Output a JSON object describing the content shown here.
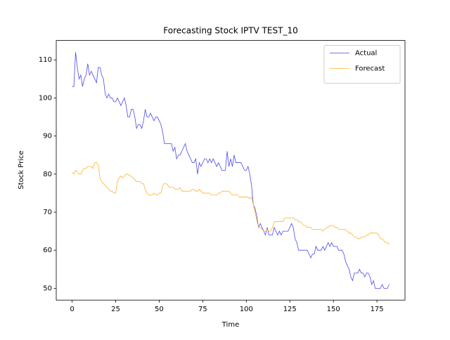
{
  "chart_data": {
    "type": "line",
    "title": "Forecasting Stock IPTV TEST_10",
    "xlabel": "Time",
    "ylabel": "Stock Price",
    "x": [
      0,
      1,
      2,
      3,
      4,
      5,
      6,
      7,
      8,
      9,
      10,
      11,
      12,
      13,
      14,
      15,
      16,
      17,
      18,
      19,
      20,
      21,
      22,
      23,
      24,
      25,
      26,
      27,
      28,
      29,
      30,
      31,
      32,
      33,
      34,
      35,
      36,
      37,
      38,
      39,
      40,
      41,
      42,
      43,
      44,
      45,
      46,
      47,
      48,
      49,
      50,
      51,
      52,
      53,
      54,
      55,
      56,
      57,
      58,
      59,
      60,
      61,
      62,
      63,
      64,
      65,
      66,
      67,
      68,
      69,
      70,
      71,
      72,
      73,
      74,
      75,
      76,
      77,
      78,
      79,
      80,
      81,
      82,
      83,
      84,
      85,
      86,
      87,
      88,
      89,
      90,
      91,
      92,
      93,
      94,
      95,
      96,
      97,
      98,
      99,
      100,
      101,
      102,
      103,
      104,
      105,
      106,
      107,
      108,
      109,
      110,
      111,
      112,
      113,
      114,
      115,
      116,
      117,
      118,
      119,
      120,
      121,
      122,
      123,
      124,
      125,
      126,
      127,
      128,
      129,
      130,
      131,
      132,
      133,
      134,
      135,
      136,
      137,
      138,
      139,
      140,
      141,
      142,
      143,
      144,
      145,
      146,
      147,
      148,
      149,
      150,
      151,
      152,
      153,
      154,
      155,
      156,
      157,
      158,
      159,
      160,
      161,
      162,
      163,
      164,
      165,
      166,
      167,
      168,
      169,
      170,
      171,
      172,
      173,
      174,
      175,
      176,
      177,
      178,
      179,
      180,
      181,
      182
    ],
    "series": [
      {
        "name": "Actual",
        "color": "#4a4aeb",
        "values": [
          103,
          103,
          112,
          108,
          105,
          106,
          103,
          105,
          106,
          109,
          106,
          107,
          106,
          105,
          104,
          108,
          108,
          106,
          105,
          101,
          100,
          101,
          100,
          100,
          99,
          99,
          100,
          99,
          98,
          99,
          100,
          98,
          95,
          95,
          97,
          97,
          95,
          92,
          93,
          93,
          92,
          94,
          97,
          95,
          95,
          96,
          95,
          94,
          95,
          95,
          94,
          93,
          91,
          88,
          88,
          88,
          88,
          88,
          86,
          87,
          84,
          85,
          85,
          86,
          87,
          88,
          86,
          85,
          84,
          83,
          83,
          84,
          80,
          83,
          82,
          83,
          84,
          84,
          83,
          84,
          83,
          84,
          83,
          82,
          83,
          82,
          81,
          81,
          81,
          86,
          82,
          84,
          82,
          85,
          83,
          83,
          83,
          83,
          82,
          81,
          81,
          82,
          80,
          77,
          72,
          71,
          69,
          66,
          67,
          66,
          65,
          64,
          66,
          64,
          64,
          64,
          66,
          65,
          64,
          65,
          64,
          65,
          65,
          65,
          65,
          66,
          67,
          66,
          63,
          62,
          60,
          60,
          60,
          60,
          60,
          60,
          59,
          58,
          59,
          59,
          61,
          60,
          60,
          60,
          61,
          60,
          61,
          62,
          61,
          62,
          61,
          61,
          61,
          60,
          60,
          60,
          59,
          57,
          56,
          55,
          53,
          52,
          54,
          54,
          54,
          55,
          54,
          54,
          53,
          54,
          54,
          53,
          51,
          52,
          50,
          50,
          50,
          50,
          51,
          50,
          50,
          50,
          51
        ]
      },
      {
        "name": "Forecast",
        "color": "#ffb32a",
        "values": [
          80.5,
          80,
          81,
          80.5,
          80,
          80,
          81,
          81.5,
          81.5,
          82,
          82,
          82,
          81.5,
          83,
          83,
          82.5,
          79,
          78,
          77.5,
          77,
          76.5,
          76,
          75.5,
          75.5,
          75,
          75,
          78,
          79,
          79.5,
          79,
          79.5,
          80,
          80,
          79.5,
          79.5,
          79,
          78.5,
          78,
          78,
          78,
          77.5,
          77.5,
          76,
          75,
          74.5,
          74.5,
          74.5,
          75,
          74.5,
          74.5,
          75,
          75,
          77,
          77.5,
          77.5,
          77,
          76.5,
          76.5,
          76.5,
          76,
          76,
          76,
          76.5,
          75.5,
          75.5,
          75.5,
          75.5,
          75.5,
          75.5,
          76,
          76,
          75.5,
          75.5,
          76,
          75.5,
          75,
          75,
          75,
          75,
          75,
          74.5,
          74.5,
          74.5,
          74.5,
          75,
          75,
          75.5,
          75.5,
          75.5,
          75.5,
          75.5,
          75,
          74.5,
          74.5,
          74.5,
          74.5,
          74,
          74,
          74,
          74,
          74,
          74,
          73.5,
          74,
          72,
          70,
          68,
          66,
          66,
          65.5,
          65,
          65,
          65.5,
          65,
          65,
          66,
          67.5,
          67.5,
          67.5,
          67.5,
          67.5,
          67.5,
          68.5,
          68.5,
          68.5,
          68.5,
          68.5,
          68.5,
          68,
          68,
          67.5,
          67.5,
          67,
          66.5,
          66.5,
          66,
          66,
          66,
          65.5,
          65.5,
          65.5,
          65.5,
          65.5,
          65.5,
          65,
          65.5,
          66,
          66,
          66.5,
          66.5,
          66.5,
          66,
          66,
          65.5,
          65.5,
          65.5,
          65.5,
          65.5,
          65,
          64.5,
          64.5,
          64,
          63.5,
          63.5,
          63,
          63,
          63.5,
          63.5,
          63.5,
          64,
          64,
          64.5,
          64.5,
          64.5,
          64.5,
          64.5,
          64,
          63,
          63,
          62.5,
          62,
          62,
          61.5
        ]
      }
    ],
    "xlim": [
      -9.1,
      191.1
    ],
    "ylim": [
      46.9,
      115.1
    ],
    "xticks": [
      0,
      25,
      50,
      75,
      100,
      125,
      150,
      175
    ],
    "yticks": [
      50,
      60,
      70,
      80,
      90,
      100,
      110
    ],
    "legend": "upper right"
  }
}
